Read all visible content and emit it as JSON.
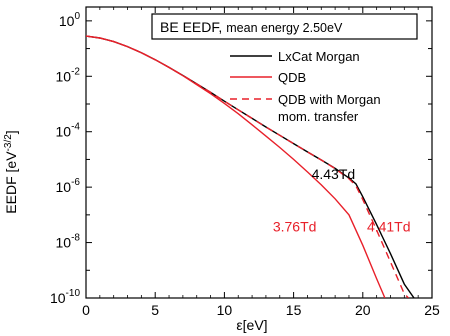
{
  "chart_data": {
    "type": "line",
    "title": "BE EEDF,",
    "subtitle": "mean energy 2.50eV",
    "xlabel": "ε[eV]",
    "ylabel": "EEDF [eV",
    "ylabel_sup": "-3/2",
    "ylabel_end": "]",
    "xlim": [
      0,
      25
    ],
    "ylim_log10": [
      -10,
      0.5
    ],
    "y_scale": "log",
    "x_ticks": [
      "0",
      "5",
      "10",
      "15",
      "20",
      "25"
    ],
    "x_tick_values": [
      0,
      5,
      10,
      15,
      20,
      25
    ],
    "y_ticks": [
      {
        "base": "10",
        "exp": "0",
        "value": 0
      },
      {
        "base": "10",
        "exp": "-2",
        "value": -2
      },
      {
        "base": "10",
        "exp": "-4",
        "value": -4
      },
      {
        "base": "10",
        "exp": "-6",
        "value": -6
      },
      {
        "base": "10",
        "exp": "-8",
        "value": -8
      },
      {
        "base": "10",
        "exp": "-10",
        "value": -10
      }
    ],
    "legend_placement": "top-right",
    "colors": {
      "black": "#000000",
      "red": "#e8202a"
    },
    "series": [
      {
        "name": "LxCat Morgan",
        "color": "#000000",
        "dash": "solid",
        "x": [
          0,
          1,
          2,
          3,
          4,
          5,
          6,
          7,
          8,
          9,
          10,
          11,
          12,
          13,
          14,
          15,
          16,
          17,
          18,
          19,
          19.5,
          20,
          21,
          22,
          23,
          23.7
        ],
        "y_log10": [
          -0.55,
          -0.62,
          -0.75,
          -0.93,
          -1.15,
          -1.4,
          -1.68,
          -1.97,
          -2.27,
          -2.58,
          -2.9,
          -3.21,
          -3.52,
          -3.83,
          -4.13,
          -4.43,
          -4.73,
          -5.02,
          -5.32,
          -5.67,
          -5.88,
          -6.35,
          -7.35,
          -8.4,
          -9.5,
          -10.0
        ]
      },
      {
        "name": "QDB",
        "color": "#e8202a",
        "dash": "solid",
        "x": [
          0,
          1,
          2,
          3,
          4,
          5,
          6,
          7,
          8,
          9,
          10,
          11,
          12,
          13,
          14,
          15,
          16,
          17,
          18,
          19,
          20,
          21,
          21.6
        ],
        "y_log10": [
          -0.55,
          -0.62,
          -0.75,
          -0.93,
          -1.15,
          -1.4,
          -1.68,
          -1.98,
          -2.3,
          -2.63,
          -2.98,
          -3.35,
          -3.75,
          -4.16,
          -4.57,
          -5.0,
          -5.45,
          -5.92,
          -6.42,
          -7.0,
          -8.1,
          -9.3,
          -10.0
        ]
      },
      {
        "name": "QDB with Morgan",
        "name_line2": "mom. transfer",
        "color": "#e8202a",
        "dash": "dashed",
        "x": [
          0,
          1,
          2,
          3,
          4,
          5,
          6,
          7,
          8,
          9,
          10,
          11,
          12,
          13,
          14,
          15,
          16,
          17,
          18,
          19,
          19.5,
          20,
          21,
          22,
          23,
          23.3
        ],
        "y_log10": [
          -0.55,
          -0.62,
          -0.75,
          -0.93,
          -1.15,
          -1.4,
          -1.68,
          -1.97,
          -2.27,
          -2.58,
          -2.9,
          -3.21,
          -3.52,
          -3.83,
          -4.13,
          -4.43,
          -4.73,
          -5.02,
          -5.33,
          -5.7,
          -5.95,
          -6.45,
          -7.55,
          -8.7,
          -9.85,
          -10.0
        ]
      }
    ],
    "annotations": [
      {
        "text": "4.43Td",
        "color": "#000000",
        "x": 16.3,
        "y_log10": -5.7
      },
      {
        "text": "3.76Td",
        "color": "#e8202a",
        "x": 13.5,
        "y_log10": -7.6
      },
      {
        "text": "4.41Td",
        "color": "#e8202a",
        "x": 20.3,
        "y_log10": -7.6
      }
    ]
  }
}
